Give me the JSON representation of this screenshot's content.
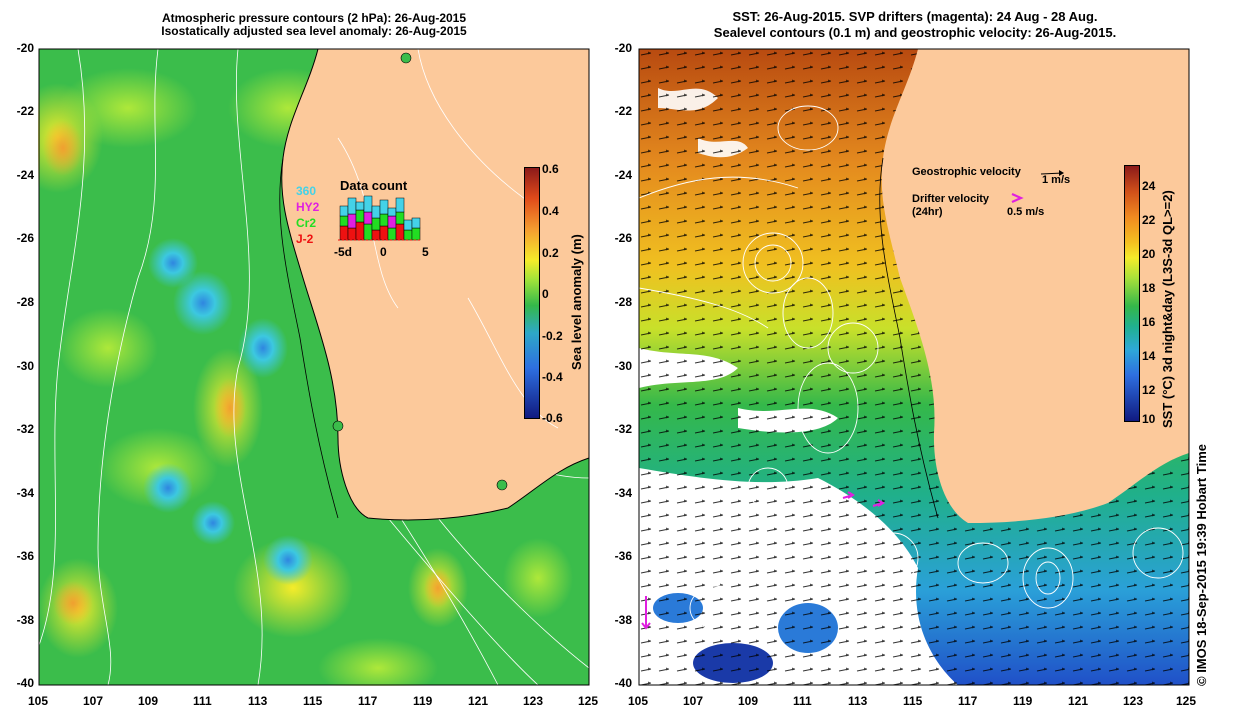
{
  "left_panel": {
    "title_line1": "Atmospheric pressure contours (2 hPa): 26-Aug-2015",
    "title_line2": "Isostatically adjusted sea level anomaly: 26-Aug-2015",
    "lat_ticks": [
      "-20",
      "-22",
      "-24",
      "-26",
      "-28",
      "-30",
      "-32",
      "-34",
      "-36",
      "-38",
      "-40"
    ],
    "lon_ticks": [
      "105",
      "107",
      "109",
      "111",
      "113",
      "115",
      "117",
      "119",
      "121",
      "123",
      "125"
    ],
    "colorbar": {
      "label": "Sea level anomaly (m)",
      "ticks": [
        "0.6",
        "0.4",
        "0.2",
        "0",
        "-0.2",
        "-0.4",
        "-0.6"
      ],
      "range": [
        -0.6,
        0.6
      ]
    },
    "data_count": {
      "title": "Data count",
      "satellites": [
        {
          "name": "360",
          "color": "#44d2e8"
        },
        {
          "name": "HY2",
          "color": "#e020e0"
        },
        {
          "name": "Cr2",
          "color": "#22dd22"
        },
        {
          "name": "J-2",
          "color": "#ee1111"
        }
      ],
      "axis_labels": [
        "-5d",
        "0",
        "5"
      ]
    }
  },
  "right_panel": {
    "title_line1": "SST: 26-Aug-2015. SVP drifters (magenta): 24 Aug - 28 Aug.",
    "title_line2": "Sealevel contours (0.1 m) and geostrophic velocity: 26-Aug-2015.",
    "lat_ticks": [
      "-20",
      "-22",
      "-24",
      "-26",
      "-28",
      "-30",
      "-32",
      "-34",
      "-36",
      "-38",
      "-40"
    ],
    "lon_ticks": [
      "105",
      "107",
      "109",
      "111",
      "113",
      "115",
      "117",
      "119",
      "121",
      "123",
      "125"
    ],
    "legend": {
      "geostrophic_label": "Geostrophic velocity",
      "geostrophic_scale": "1 m/s",
      "drifter_label": "Drifter velocity",
      "drifter_sub": "(24hr)",
      "drifter_scale": "0.5 m/s"
    },
    "colorbar": {
      "label": "SST (°C) 3d night&day (L3S-3d QL>=2)",
      "ticks": [
        "24",
        "22",
        "20",
        "18",
        "16",
        "14",
        "12",
        "10"
      ],
      "range": [
        10,
        25
      ]
    },
    "credit": "© IMOS 18-Sep-2015 19:39 Hobart Time"
  },
  "colors": {
    "land": "#fcc99b",
    "ocean_green": "#33b84a",
    "sst_orange": "#e07a1c",
    "drifter": "#e020e0"
  }
}
